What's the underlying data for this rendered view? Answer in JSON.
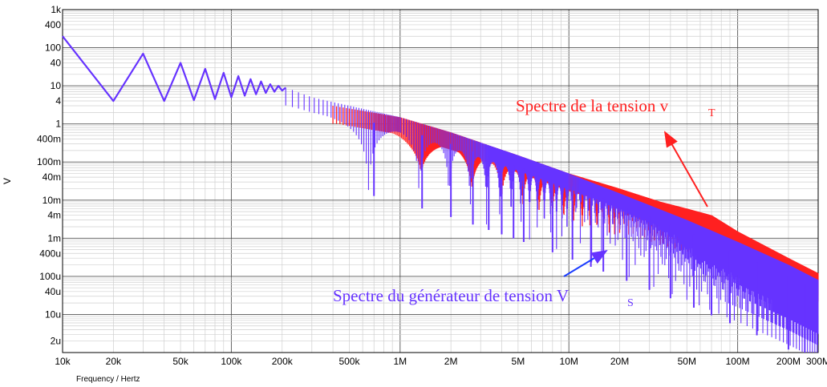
{
  "chart_data": {
    "type": "line",
    "xlabel": "Frequency / Hertz",
    "ylabel": "V",
    "x_scale": "log",
    "y_scale": "log",
    "xlim": [
      10000,
      300000000
    ],
    "ylim": [
      1e-06,
      1000
    ],
    "grid": true,
    "x_ticks": [
      {
        "value": 10000,
        "label": "10k"
      },
      {
        "value": 20000,
        "label": "20k"
      },
      {
        "value": 50000,
        "label": "50k"
      },
      {
        "value": 100000,
        "label": "100k"
      },
      {
        "value": 200000,
        "label": "200k"
      },
      {
        "value": 500000,
        "label": "500k"
      },
      {
        "value": 1000000,
        "label": "1M"
      },
      {
        "value": 2000000,
        "label": "2M"
      },
      {
        "value": 5000000,
        "label": "5M"
      },
      {
        "value": 10000000,
        "label": "10M"
      },
      {
        "value": 20000000,
        "label": "20M"
      },
      {
        "value": 50000000,
        "label": "50M"
      },
      {
        "value": 100000000,
        "label": "100M"
      },
      {
        "value": 200000000,
        "label": "200M"
      },
      {
        "value": 300000000,
        "label": "300M"
      }
    ],
    "y_ticks": [
      {
        "value": 1000,
        "label": "1k"
      },
      {
        "value": 400,
        "label": "400"
      },
      {
        "value": 100,
        "label": "100"
      },
      {
        "value": 40,
        "label": "40"
      },
      {
        "value": 10,
        "label": "10"
      },
      {
        "value": 4,
        "label": "4"
      },
      {
        "value": 1,
        "label": "1"
      },
      {
        "value": 0.4,
        "label": "400m"
      },
      {
        "value": 0.1,
        "label": "100m"
      },
      {
        "value": 0.04,
        "label": "40m"
      },
      {
        "value": 0.01,
        "label": "10m"
      },
      {
        "value": 0.004,
        "label": "4m"
      },
      {
        "value": 0.001,
        "label": "1m"
      },
      {
        "value": 0.0004,
        "label": "400u"
      },
      {
        "value": 0.0001,
        "label": "100u"
      },
      {
        "value": 4e-05,
        "label": "40u"
      },
      {
        "value": 1e-05,
        "label": "10u"
      },
      {
        "value": 2e-06,
        "label": "2u"
      }
    ],
    "series": [
      {
        "name": "Spectre de la tension v",
        "name_sub": "T",
        "color": "#ff2020",
        "envelope": {
          "x": [
            400000,
            1000000,
            2000000,
            5000000,
            10000000,
            20000000,
            35000000,
            50000000,
            70000000,
            100000000,
            200000000,
            300000000
          ],
          "y": [
            3,
            1.5,
            0.6,
            0.15,
            0.05,
            0.02,
            0.009,
            0.006,
            0.004,
            0.0015,
            0.0003,
            0.00012
          ]
        }
      },
      {
        "name": "Spectre du générateur de tension V",
        "name_sub": "S",
        "color": "#6633ff",
        "peaks": {
          "x": [
            10000,
            30000,
            50000,
            70000,
            90000,
            110000,
            130000,
            150000,
            170000,
            190000,
            210000
          ],
          "y": [
            200,
            70,
            40,
            28,
            22,
            18,
            15,
            13,
            11,
            10,
            9
          ]
        },
        "troughs": {
          "x": [
            20000,
            40000,
            60000,
            80000,
            100000,
            120000,
            140000,
            160000,
            180000,
            200000
          ],
          "y": [
            4,
            4,
            4.2,
            4.5,
            5,
            5.5,
            6,
            6.5,
            7,
            7.5
          ]
        },
        "envelope": {
          "x": [
            300000,
            1000000,
            2000000,
            5000000,
            10000000,
            20000000,
            50000000,
            100000000,
            200000000,
            300000000
          ],
          "y": [
            5,
            1.5,
            0.6,
            0.15,
            0.05,
            0.015,
            0.003,
            0.0008,
            0.0002,
            8e-05
          ]
        },
        "deep_nulls_x": [
          700000,
          1350000,
          2000000,
          2700000,
          3350000,
          4000000,
          4700000,
          5400000,
          8000000,
          10500000,
          13500000,
          16000000,
          22000000,
          30000000,
          40000000,
          55000000,
          70000000,
          90000000,
          130000000,
          200000000,
          250000000
        ]
      }
    ],
    "annotations": [
      {
        "text": "Spectre de la tension v",
        "sub": "T",
        "color": "#ff2020",
        "arrow_to": [
          30000000,
          0.5
        ]
      },
      {
        "text": "Spectre du générateur de tension V",
        "sub": "S",
        "color": "#6633ff",
        "arrow_to": [
          22000000,
          0.0004
        ]
      }
    ]
  }
}
